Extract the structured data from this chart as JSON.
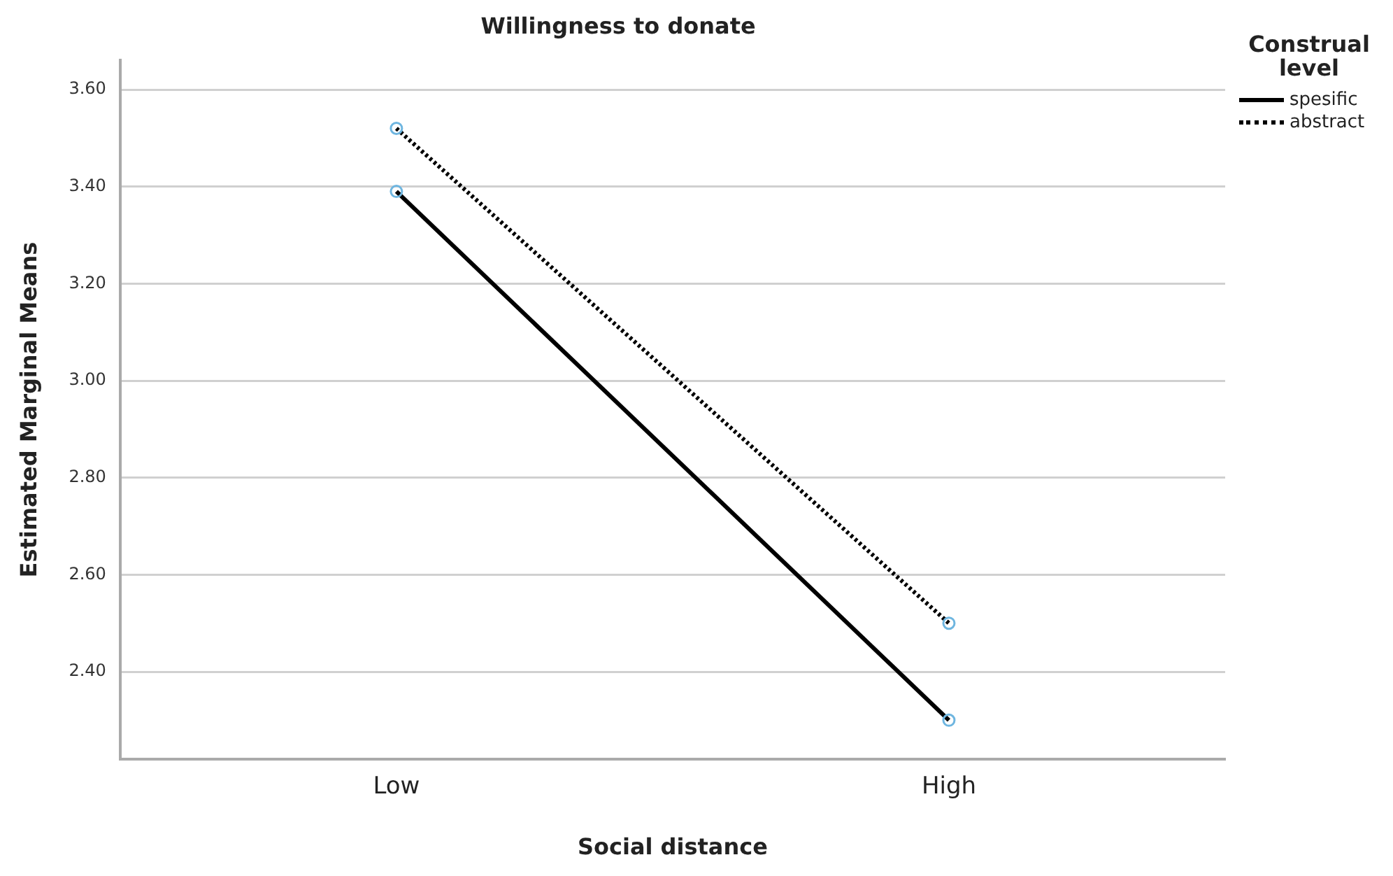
{
  "chart_data": {
    "type": "line",
    "title": "Willingness to donate",
    "xlabel": "Social distance",
    "ylabel": "Estimated Marginal Means",
    "legend_title": "Construal level",
    "categories": [
      "Low",
      "High"
    ],
    "series": [
      {
        "name": "spesific",
        "color": "#000000",
        "values": [
          3.39,
          2.3
        ],
        "line_style": "solid"
      },
      {
        "name": "abstract",
        "color": "#000000",
        "values": [
          3.52,
          2.5
        ],
        "line_style": "dotted"
      }
    ],
    "ylim": [
      2.22,
      3.66
    ],
    "yticks": [
      {
        "value": 2.4,
        "label": "2.40"
      },
      {
        "value": 2.6,
        "label": "2.60"
      },
      {
        "value": 2.8,
        "label": "2.80"
      },
      {
        "value": 3.0,
        "label": "3.00"
      },
      {
        "value": 3.2,
        "label": "3.20"
      },
      {
        "value": 3.4,
        "label": "3.40"
      },
      {
        "value": 3.6,
        "label": "3.60"
      }
    ],
    "grid": "y",
    "legend": "top right",
    "marker": "circle"
  }
}
